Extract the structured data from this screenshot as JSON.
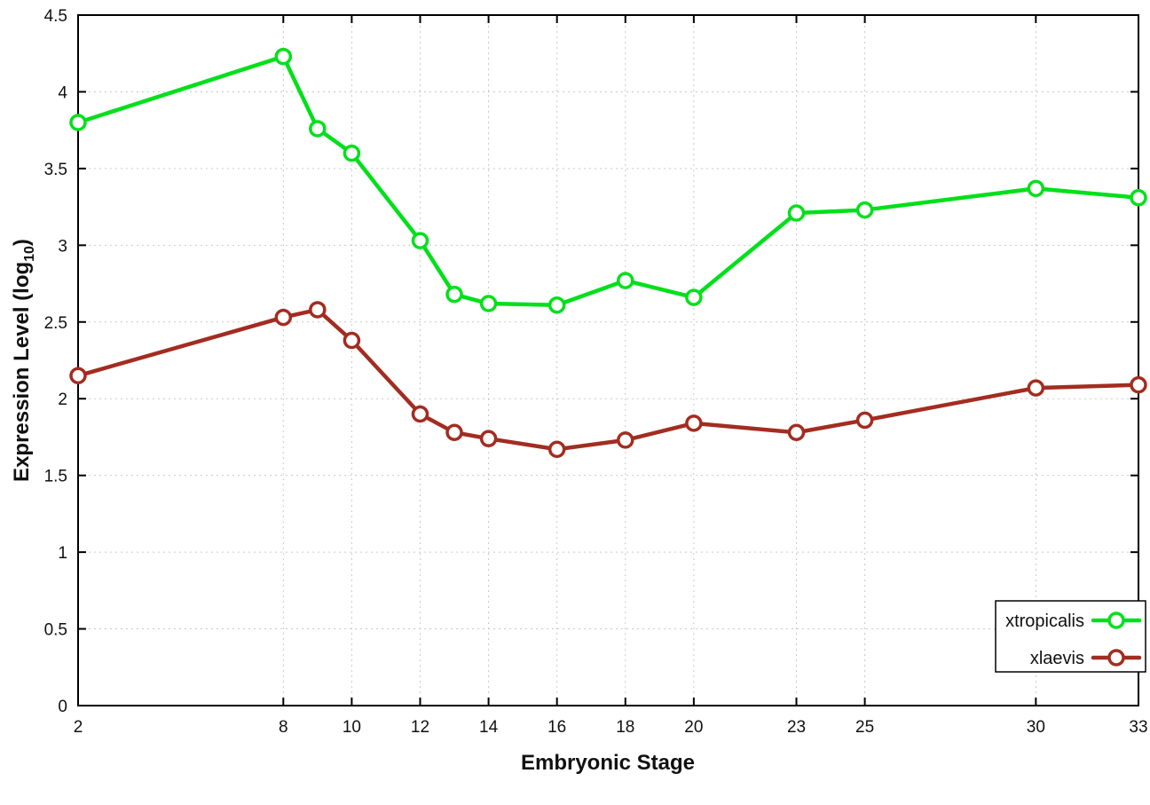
{
  "chart_data": {
    "type": "line",
    "title": "",
    "xlabel": "Embryonic Stage",
    "ylabel": "Expression Level (log10)",
    "ylabel_parts": {
      "pre": "Expression Level (log",
      "sub": "10",
      "post": ")"
    },
    "xlim": [
      2,
      33
    ],
    "ylim": [
      0,
      4.5
    ],
    "x_ticks": [
      2,
      8,
      10,
      12,
      14,
      16,
      18,
      20,
      23,
      25,
      30,
      33
    ],
    "y_ticks": [
      0,
      0.5,
      1,
      1.5,
      2,
      2.5,
      3,
      3.5,
      4,
      4.5
    ],
    "grid": true,
    "legend_position": "bottom-right-inside",
    "x": [
      2,
      8,
      9,
      10,
      12,
      13,
      14,
      16,
      18,
      20,
      23,
      25,
      30,
      33
    ],
    "series": [
      {
        "name": "xtropicalis",
        "color": "#00e01a",
        "values": [
          3.8,
          4.23,
          3.76,
          3.6,
          3.03,
          2.68,
          2.62,
          2.61,
          2.77,
          2.66,
          3.21,
          3.23,
          3.37,
          3.31
        ]
      },
      {
        "name": "xlaevis",
        "color": "#a32c20",
        "values": [
          2.15,
          2.53,
          2.58,
          2.38,
          1.9,
          1.78,
          1.74,
          1.67,
          1.73,
          1.84,
          1.78,
          1.86,
          2.07,
          2.09
        ]
      }
    ],
    "style": {
      "background": "#ffffff",
      "border_color": "#000000",
      "grid_color": "#c9c9c9",
      "text_color": "#111111"
    }
  }
}
